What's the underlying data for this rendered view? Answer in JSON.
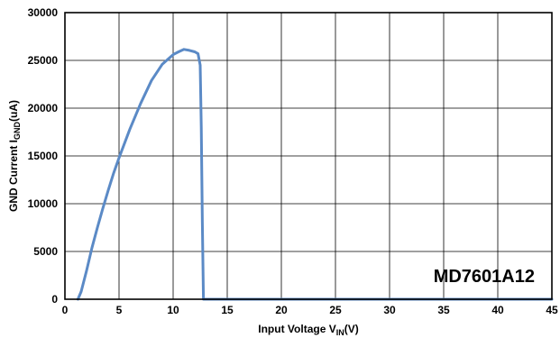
{
  "chart_data": {
    "type": "line",
    "title": "",
    "xlabel": {
      "main": "Input Voltage V",
      "sub": "IN",
      "suffix": "(V)"
    },
    "ylabel": {
      "main": "GND  Current I",
      "sub": "GND",
      "suffix": "(uA)"
    },
    "xlim": [
      0,
      45
    ],
    "ylim": [
      0,
      30000
    ],
    "xticks": [
      0,
      5,
      10,
      15,
      20,
      25,
      30,
      35,
      40,
      45
    ],
    "yticks": [
      0,
      5000,
      10000,
      15000,
      20000,
      25000,
      30000
    ],
    "grid": true,
    "annotation": "MD7601A12",
    "series": [
      {
        "color": "#5b8ac6",
        "x": [
          1.2,
          1.5,
          2.0,
          2.5,
          3.0,
          3.5,
          4.0,
          4.5,
          5.0,
          6.0,
          7.0,
          8.0,
          9.0,
          10.0,
          10.5,
          11.0,
          11.5,
          12.0,
          12.3,
          12.5,
          12.6,
          12.7,
          12.8,
          13.0,
          15,
          20,
          25,
          30,
          35,
          40,
          45
        ],
        "y": [
          0,
          800,
          3000,
          5400,
          7500,
          9500,
          11400,
          13200,
          14800,
          17800,
          20500,
          22900,
          24600,
          25600,
          25900,
          26150,
          26050,
          25900,
          25700,
          24500,
          18000,
          8000,
          0,
          0,
          0,
          0,
          0,
          0,
          0,
          0,
          0
        ]
      }
    ]
  }
}
